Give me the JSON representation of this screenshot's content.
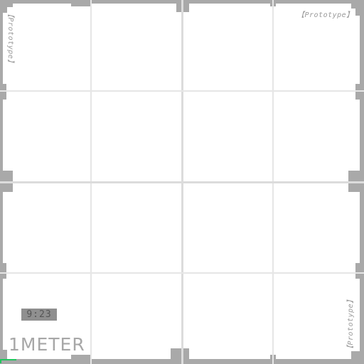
{
  "hud": {
    "clock": "9:23",
    "scale_label": "1METER"
  },
  "prototype_labels": {
    "top_right": "【Prototype】",
    "left_vertical": "【Prototype】",
    "right_vertical": "【Prototype】"
  },
  "colors": {
    "frame": "#a9a9a9",
    "grid": "#e6e6e6",
    "clock_bg": "#8f8f8f",
    "corner_mark": "#22c55e"
  }
}
